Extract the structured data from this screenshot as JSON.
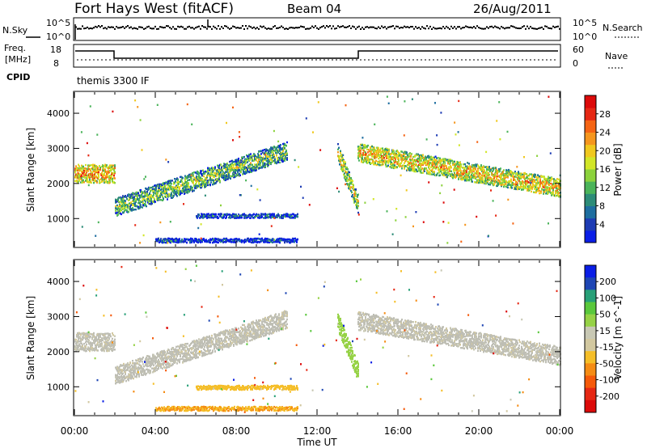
{
  "header": {
    "station": "Fort Hays West (fitACF)",
    "beam": "Beam 04",
    "date": "26/Aug/2011"
  },
  "noise_panel": {
    "left_label": "N.Sky",
    "right_label": "N.Search",
    "left_ticks": [
      "10^5",
      "10^0"
    ],
    "right_ticks": [
      "10^5",
      "10^0"
    ]
  },
  "freq_panel": {
    "left_label_line1": "Freq.",
    "left_label_line2": "[MHz]",
    "right_label": "Nave",
    "left_ticks": [
      "18",
      "8"
    ],
    "right_ticks": [
      "60",
      "0"
    ],
    "cpid_label": "CPID",
    "cpid_value": "themis 3300 IF"
  },
  "colors": {
    "power_scale": [
      "#0a1ee6",
      "#1e3cb4",
      "#1e6ea0",
      "#2d8c78",
      "#4bb45a",
      "#8cd23c",
      "#d2e628",
      "#f0c81e",
      "#f5961e",
      "#f56414",
      "#e62814",
      "#dc0a0a"
    ],
    "velocity_scale": [
      "#0a1ee6",
      "#1e46b4",
      "#28a078",
      "#5ac83c",
      "#96d246",
      "#c8c8b4",
      "#d2c8a0",
      "#f5be28",
      "#f58c14",
      "#f55a0a",
      "#e62814",
      "#dc0a0a"
    ],
    "ground_scatter": "#bebeb4"
  },
  "chart_data": [
    {
      "type": "heatmap",
      "name": "power",
      "xlabel": "",
      "ylabel": "Slant Range [km]",
      "xlim": [
        0,
        24
      ],
      "ylim": [
        200,
        4600
      ],
      "y_ticks": [
        1000,
        2000,
        3000,
        4000
      ],
      "colorbar": {
        "label": "Power [dB]",
        "ticks": [
          "4",
          "8",
          "12",
          "16",
          "20",
          "24",
          "28"
        ],
        "range": [
          0,
          30
        ]
      },
      "features": [
        {
          "t_start": 0.0,
          "t_end": 2.0,
          "range_start": 2300,
          "range_end": 2300,
          "power": 22
        },
        {
          "t_start": 2.0,
          "t_end": 10.5,
          "range_start": 1350,
          "range_end": 2950,
          "power": 14
        },
        {
          "t_start": 13.0,
          "t_end": 14.0,
          "range_start": 2900,
          "range_end": 1450,
          "power": 18
        },
        {
          "t_start": 14.0,
          "t_end": 24.0,
          "range_start": 2900,
          "range_end": 1900,
          "power": 20
        },
        {
          "t_start": 6.0,
          "t_end": 11.0,
          "range_start": 1100,
          "range_end": 1100,
          "power": 8
        },
        {
          "t_start": 4.0,
          "t_end": 11.0,
          "range_start": 400,
          "range_end": 400,
          "power": 6
        }
      ]
    },
    {
      "type": "heatmap",
      "name": "velocity",
      "xlabel": "Time UT",
      "ylabel": "Slant Range [km]",
      "xlim": [
        0,
        24
      ],
      "ylim": [
        200,
        4600
      ],
      "x_ticks": [
        "00:00",
        "04:00",
        "08:00",
        "12:00",
        "16:00",
        "20:00",
        "00:00"
      ],
      "y_ticks": [
        1000,
        2000,
        3000,
        4000
      ],
      "colorbar": {
        "label": "Velocity [m s^-1]",
        "ticks": [
          "200",
          "100",
          "50",
          "15",
          "-15",
          "-50",
          "-100",
          "-200"
        ],
        "range": [
          -250,
          250
        ]
      },
      "features": [
        {
          "t_start": 0.0,
          "t_end": 2.0,
          "range_start": 2300,
          "range_end": 2300,
          "velocity": 0
        },
        {
          "t_start": 2.0,
          "t_end": 10.5,
          "range_start": 1350,
          "range_end": 2950,
          "velocity": 0
        },
        {
          "t_start": 13.0,
          "t_end": 14.0,
          "range_start": 2900,
          "range_end": 1450,
          "velocity": 60
        },
        {
          "t_start": 14.0,
          "t_end": 24.0,
          "range_start": 2900,
          "range_end": 1900,
          "velocity": 0
        },
        {
          "t_start": 6.0,
          "t_end": 11.0,
          "range_start": 1000,
          "range_end": 1000,
          "velocity": -60
        },
        {
          "t_start": 4.0,
          "t_end": 11.0,
          "range_start": 400,
          "range_end": 400,
          "velocity": -80
        }
      ]
    }
  ]
}
